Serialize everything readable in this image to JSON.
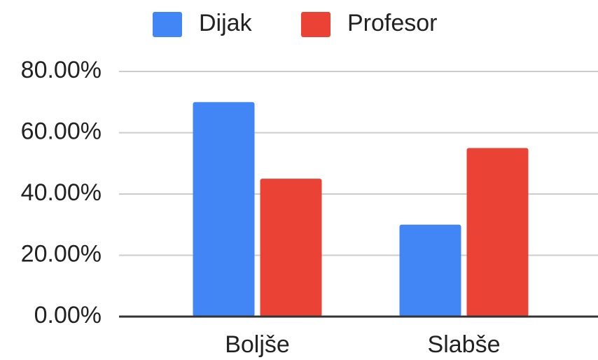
{
  "chart_data": {
    "type": "bar",
    "categories": [
      "Boljše",
      "Slabše"
    ],
    "series": [
      {
        "name": "Dijak",
        "color": "#4285f4",
        "values": [
          70,
          30
        ]
      },
      {
        "name": "Profesor",
        "color": "#ea4335",
        "values": [
          45,
          55
        ]
      }
    ],
    "ylim": [
      0,
      80
    ],
    "yticks": [
      {
        "value": 0,
        "label": "0.00%"
      },
      {
        "value": 20,
        "label": "20.00%"
      },
      {
        "value": 40,
        "label": "40.00%"
      },
      {
        "value": 60,
        "label": "60.00%"
      },
      {
        "value": 80,
        "label": "80.00%"
      }
    ],
    "grid": true,
    "legend": "top"
  }
}
